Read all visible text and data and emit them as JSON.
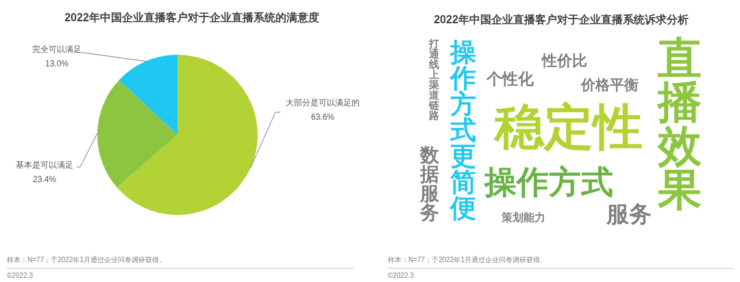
{
  "chart_data": [
    {
      "type": "pie",
      "title": "2022年中国企业直播客户对于企业直播系统的满意度",
      "categories": [
        "大部分是可以满足的",
        "基本是可以满足",
        "完全可以满足"
      ],
      "values": [
        63.6,
        23.4,
        13.0
      ],
      "value_labels": [
        "63.6%",
        "23.4%",
        "13.0%"
      ],
      "colors": [
        "#b2d235",
        "#8cc540",
        "#1fc8f2"
      ],
      "annotations": [
        "样本：N=77；于2022年1月通过企业问卷调研获得。",
        "©2022.3"
      ]
    },
    {
      "type": "other",
      "title": "2022年中国企业直播客户对于企业直播系统诉求分析",
      "categories": [
        "打通线上渠道链路",
        "操作方式更简便",
        "个性化",
        "性价比",
        "价格平衡",
        "稳定性",
        "直播效果",
        "数据服务",
        "操作方式",
        "策划能力",
        "服务"
      ],
      "colors": [
        "#7f7f7f",
        "#1fc8f2",
        "#7f7f7f",
        "#7f7f7f",
        "#7f7f7f",
        "#b3d335",
        "#8cc63f",
        "#7f7f7f",
        "#69b246",
        "#7f7f7f",
        "#7f7f7f"
      ],
      "annotations": [
        "样本：N=77；于2022年1月通过企业问卷调研获得。",
        "©2022.3"
      ]
    }
  ]
}
